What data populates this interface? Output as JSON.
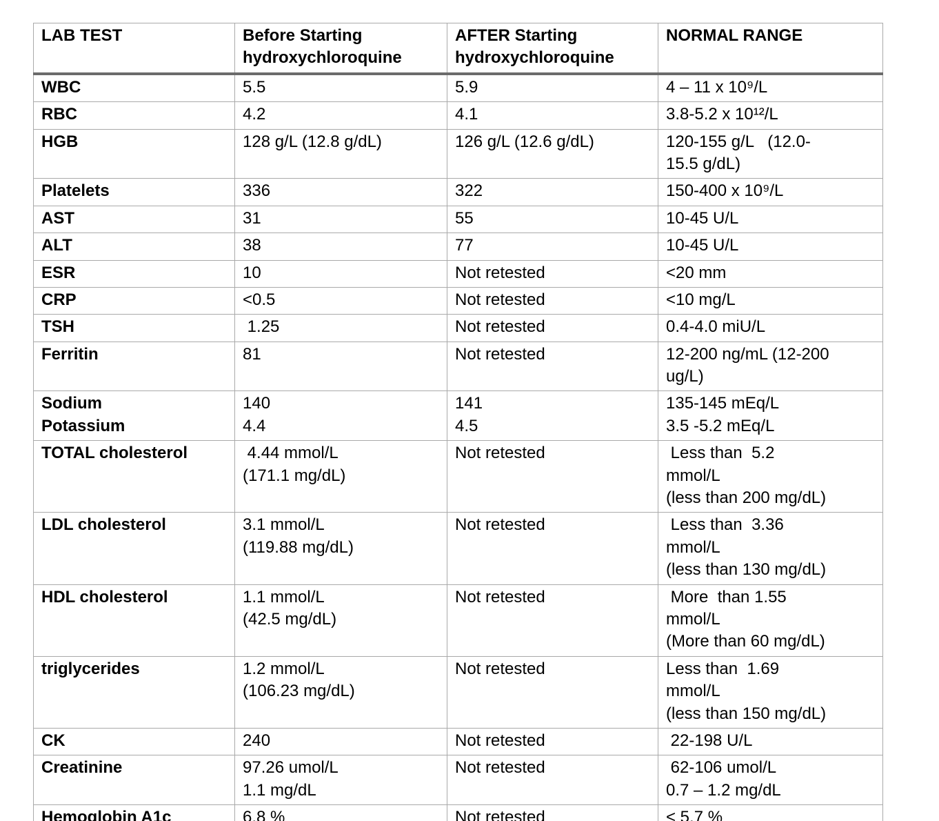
{
  "table": {
    "columns": [
      {
        "key": "test",
        "label": "LAB TEST"
      },
      {
        "key": "before",
        "label": "Before Starting hydroxychloroquine"
      },
      {
        "key": "after",
        "label": "AFTER Starting hydroxychloroquine"
      },
      {
        "key": "normal",
        "label": "NORMAL RANGE"
      }
    ],
    "rows": [
      {
        "test": "WBC",
        "before": "5.5",
        "after": "5.9",
        "normal": "4 – 11 x 10⁹/L"
      },
      {
        "test": "RBC",
        "before": "4.2",
        "after": "4.1",
        "normal": "3.8-5.2 x 10¹²/L"
      },
      {
        "test": "HGB",
        "before": "128 g/L (12.8 g/dL)",
        "after": "126 g/L (12.6 g/dL)",
        "normal": "120-155 g/L   (12.0-\n15.5 g/dL)"
      },
      {
        "test": "Platelets",
        "before": "336",
        "after": "322",
        "normal": "150-400 x 10⁹/L"
      },
      {
        "test": "AST",
        "before": "31",
        "after": "55",
        "normal": "10-45 U/L"
      },
      {
        "test": "ALT",
        "before": "38",
        "after": "77",
        "normal": "10-45 U/L"
      },
      {
        "test": "ESR",
        "before": "10",
        "after": "Not retested",
        "normal": "<20 mm"
      },
      {
        "test": "CRP",
        "before": "<0.5",
        "after": "Not retested",
        "normal": "<10 mg/L"
      },
      {
        "test": "TSH",
        "before": " 1.25",
        "after": "Not retested",
        "normal": "0.4-4.0 miU/L"
      },
      {
        "test": "Ferritin",
        "before": "81",
        "after": "Not retested",
        "normal": "12-200 ng/mL (12-200\nug/L)"
      },
      {
        "test": "Sodium\nPotassium",
        "before": "140\n4.4",
        "after": "141\n4.5",
        "normal": "135-145 mEq/L\n3.5 -5.2 mEq/L"
      },
      {
        "test": "TOTAL cholesterol",
        "before": " 4.44 mmol/L\n(171.1 mg/dL)",
        "after": "Not retested",
        "normal": " Less than  5.2\nmmol/L\n(less than 200 mg/dL)"
      },
      {
        "test": "LDL cholesterol",
        "before": "3.1 mmol/L\n(119.88 mg/dL)",
        "after": "Not retested",
        "normal": " Less than  3.36\nmmol/L\n(less than 130 mg/dL)"
      },
      {
        "test": "HDL cholesterol",
        "before": "1.1 mmol/L\n(42.5 mg/dL)",
        "after": "Not retested",
        "normal": " More  than 1.55\nmmol/L\n(More than 60 mg/dL)"
      },
      {
        "test": "triglycerides",
        "before": "1.2 mmol/L\n(106.23 mg/dL)",
        "after": "Not retested",
        "normal": "Less than  1.69\nmmol/L\n(less than 150 mg/dL)"
      },
      {
        "test": "CK",
        "before": "240",
        "after": "Not retested",
        "normal": " 22-198 U/L"
      },
      {
        "test": "Creatinine",
        "before": "97.26 umol/L\n1.1 mg/dL",
        "after": "Not retested",
        "normal": " 62-106 umol/L\n0.7 – 1.2 mg/dL"
      },
      {
        "test": "Hemoglobin A1c",
        "before": "6.8 %",
        "after": "Not retested",
        "normal": "< 5.7 %"
      }
    ]
  },
  "colors": {
    "border": "#a9a9a9",
    "header_rule": "#6b6b6b",
    "text": "#000000",
    "background": "#ffffff"
  }
}
